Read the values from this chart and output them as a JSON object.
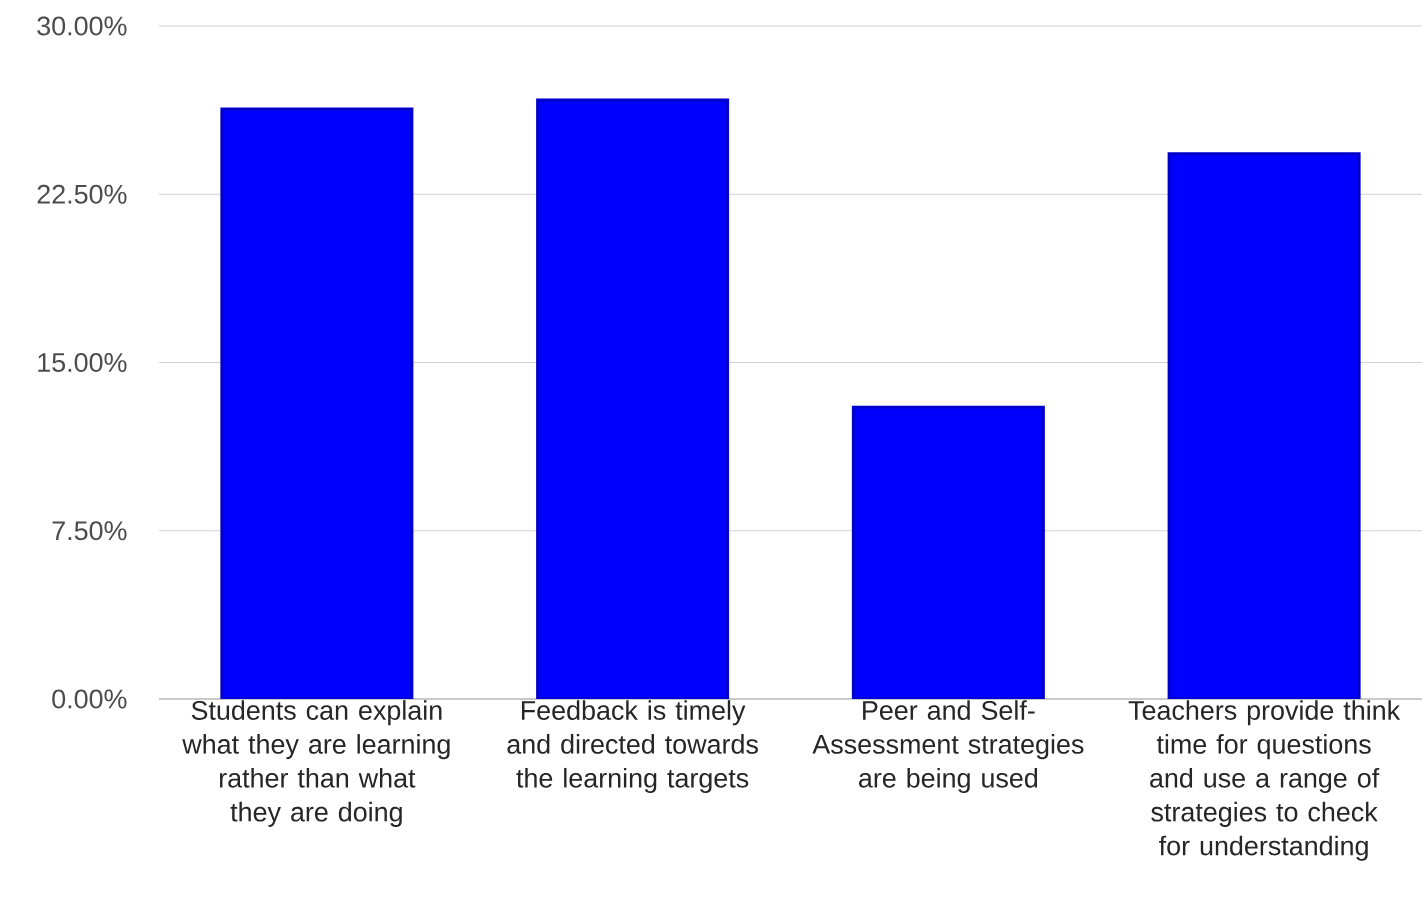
{
  "chart_data": {
    "type": "bar",
    "categories": [
      "Students can explain what they are learning rather than what they are doing",
      "Feedback is timely and directed towards the learning targets",
      "Peer and Self-Assessment strategies are being used",
      "Teachers provide think time for questions and use a range of strategies to check for understanding"
    ],
    "values": [
      26.3,
      26.7,
      13.0,
      24.3
    ],
    "color": "#0000ff",
    "ylim": [
      0,
      30
    ],
    "yticks": [
      {
        "value": 0,
        "label": "0.00%"
      },
      {
        "value": 7.5,
        "label": "7.50%"
      },
      {
        "value": 15,
        "label": "15.00%"
      },
      {
        "value": 22.5,
        "label": "22.50%"
      },
      {
        "value": 30,
        "label": "30.00%"
      }
    ],
    "grid": "y"
  }
}
